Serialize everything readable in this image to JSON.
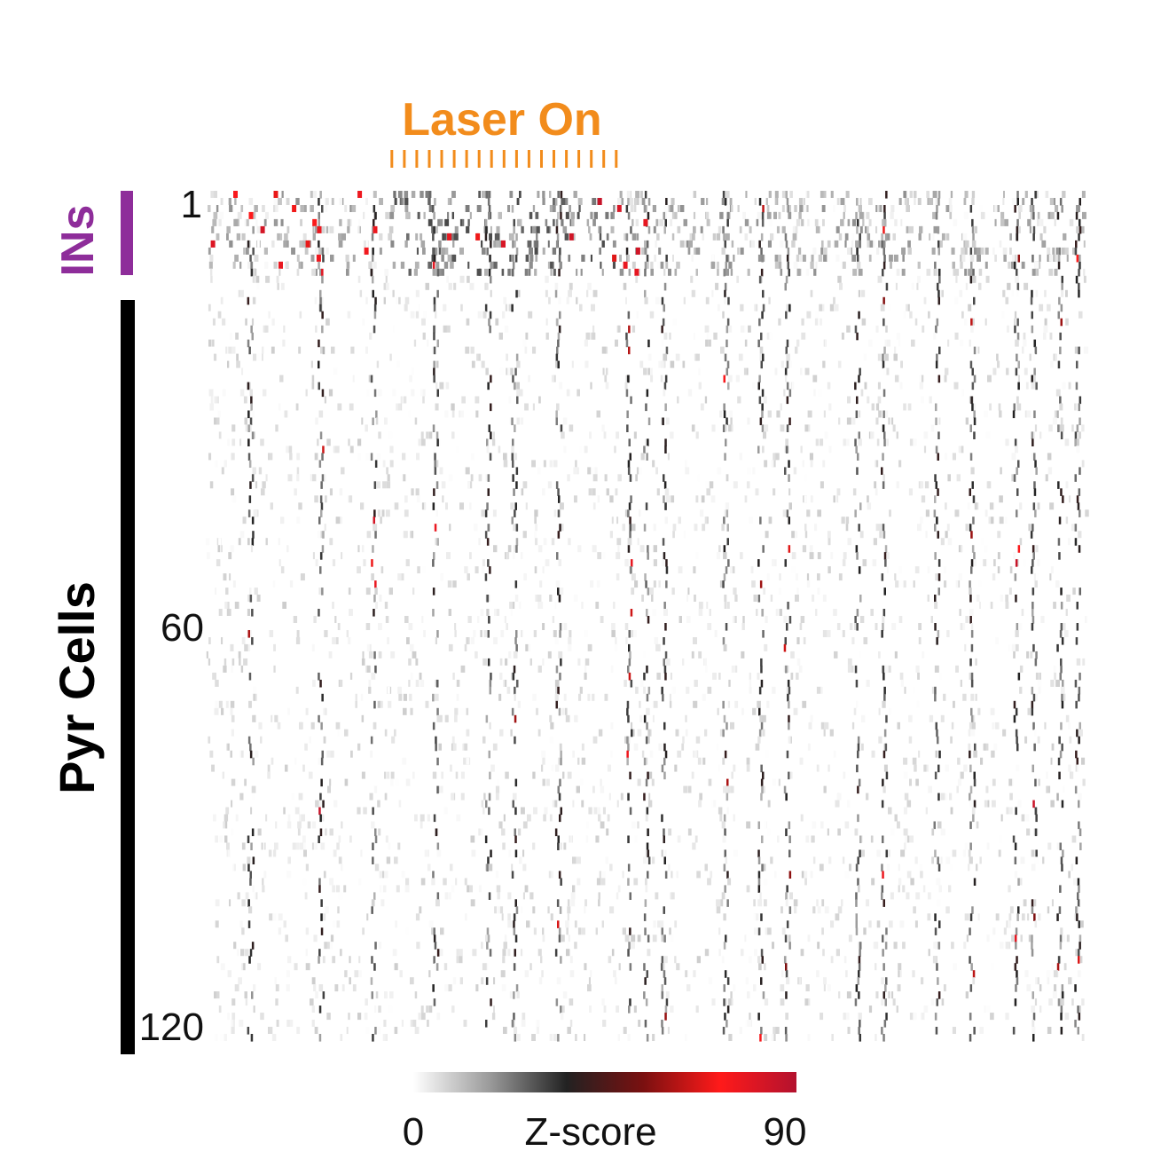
{
  "chart_data": {
    "type": "heatmap",
    "title": "",
    "xlabel": "",
    "ylabel": "",
    "rows": 120,
    "y_ticks": [
      {
        "value": 1,
        "label": "1"
      },
      {
        "value": 60,
        "label": "60"
      },
      {
        "value": 120,
        "label": "120"
      }
    ],
    "groups": [
      {
        "name": "INs",
        "row_start": 1,
        "row_end": 12,
        "color": "#8e2d9a"
      },
      {
        "name": "Pyr Cells",
        "row_start": 17,
        "row_end": 120,
        "color": "#000000"
      }
    ],
    "stimulus": {
      "label": "Laser On",
      "color": "#f28c1c",
      "pulses": 19,
      "start_fraction": 0.21,
      "end_fraction": 0.465
    },
    "colorbar": {
      "label": "Z-score",
      "min": 0,
      "max": 90,
      "min_label": "0",
      "max_label": "90",
      "stops": [
        "#ffffff",
        "#9a9a9a",
        "#222222",
        "#7a1010",
        "#ff1a1a",
        "#b3122e"
      ]
    }
  }
}
